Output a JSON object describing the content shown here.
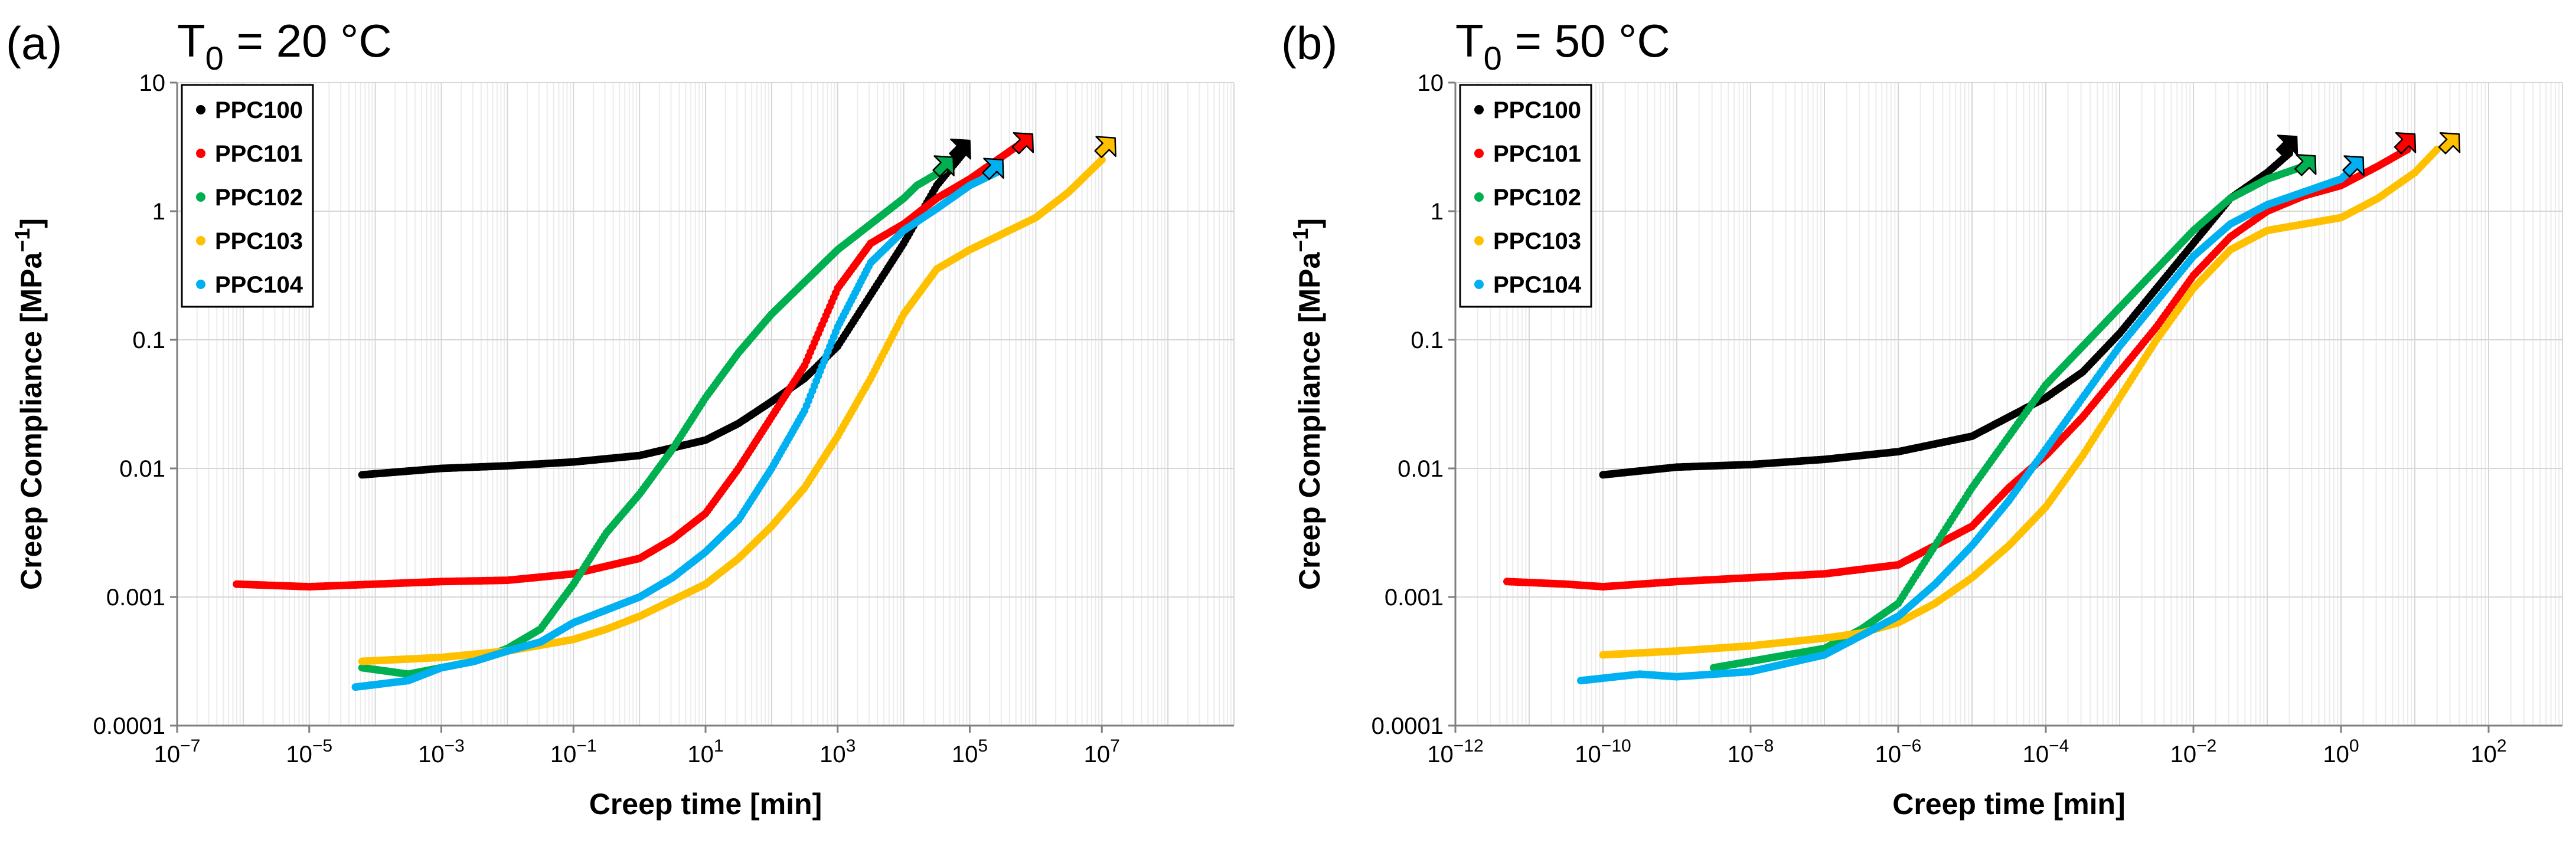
{
  "chart_data": [
    {
      "type": "scatter",
      "panel_label": "(a)",
      "title_main": "T",
      "title_sub": "0",
      "title_rest": " = 20 °C",
      "xscale": "log",
      "yscale": "log",
      "xlabel": "Creep time [min]",
      "ylabel_main": "Creep Compliance [MPa",
      "ylabel_sup": "−1",
      "ylabel_end": "]",
      "xlim_exp": [
        -7,
        9
      ],
      "ylim_exp": [
        -4,
        1
      ],
      "x_ticks": [
        {
          "exp": -7,
          "base": "10",
          "sup": "−7"
        },
        {
          "exp": -5,
          "base": "10",
          "sup": "−5"
        },
        {
          "exp": -3,
          "base": "10",
          "sup": "−3"
        },
        {
          "exp": -1,
          "base": "10",
          "sup": "−1"
        },
        {
          "exp": 1,
          "base": "10",
          "sup": "1"
        },
        {
          "exp": 3,
          "base": "10",
          "sup": "3"
        },
        {
          "exp": 5,
          "base": "10",
          "sup": "5"
        },
        {
          "exp": 7,
          "base": "10",
          "sup": "7"
        }
      ],
      "y_ticks": [
        {
          "exp": -4,
          "label": "0.0001"
        },
        {
          "exp": -3,
          "label": "0.001"
        },
        {
          "exp": -2,
          "label": "0.01"
        },
        {
          "exp": -1,
          "label": "0.1"
        },
        {
          "exp": 0,
          "label": "1"
        },
        {
          "exp": 1,
          "label": "10"
        }
      ],
      "legend_position": "top-left",
      "series": [
        {
          "name": "PPC100",
          "color": "#000000",
          "points_log10": [
            [
              -4.2,
              -2.05
            ],
            [
              -3,
              -2
            ],
            [
              -2,
              -1.98
            ],
            [
              -1,
              -1.95
            ],
            [
              0,
              -1.9
            ],
            [
              1,
              -1.78
            ],
            [
              1.5,
              -1.65
            ],
            [
              2,
              -1.48
            ],
            [
              2.5,
              -1.3
            ],
            [
              3,
              -1.05
            ],
            [
              3.5,
              -0.65
            ],
            [
              4,
              -0.25
            ],
            [
              4.5,
              0.2
            ],
            [
              4.9,
              0.45
            ]
          ],
          "arrow_tip_log10": [
            5.0,
            0.55
          ]
        },
        {
          "name": "PPC101",
          "color": "#ff0000",
          "points_log10": [
            [
              -6.1,
              -2.9
            ],
            [
              -5,
              -2.92
            ],
            [
              -4,
              -2.9
            ],
            [
              -3,
              -2.88
            ],
            [
              -2,
              -2.87
            ],
            [
              -1,
              -2.82
            ],
            [
              0,
              -2.7
            ],
            [
              0.5,
              -2.55
            ],
            [
              1,
              -2.35
            ],
            [
              1.5,
              -2
            ],
            [
              2,
              -1.6
            ],
            [
              2.5,
              -1.2
            ],
            [
              3,
              -0.6
            ],
            [
              3.5,
              -0.25
            ],
            [
              4,
              -0.1
            ],
            [
              4.5,
              0.1
            ],
            [
              5,
              0.25
            ],
            [
              5.7,
              0.5
            ]
          ],
          "arrow_tip_log10": [
            5.95,
            0.6
          ]
        },
        {
          "name": "PPC102",
          "color": "#00b050",
          "points_log10": [
            [
              -4.2,
              -3.55
            ],
            [
              -3.5,
              -3.6
            ],
            [
              -3,
              -3.55
            ],
            [
              -2.5,
              -3.5
            ],
            [
              -2,
              -3.4
            ],
            [
              -1.5,
              -3.25
            ],
            [
              -1,
              -2.9
            ],
            [
              -0.5,
              -2.5
            ],
            [
              0,
              -2.2
            ],
            [
              0.5,
              -1.85
            ],
            [
              1,
              -1.45
            ],
            [
              1.5,
              -1.1
            ],
            [
              2,
              -0.8
            ],
            [
              2.5,
              -0.55
            ],
            [
              3,
              -0.3
            ],
            [
              3.5,
              -0.1
            ],
            [
              3.8,
              0.02
            ],
            [
              4,
              0.1
            ],
            [
              4.2,
              0.2
            ],
            [
              4.6,
              0.32
            ]
          ],
          "arrow_tip_log10": [
            4.75,
            0.42
          ]
        },
        {
          "name": "PPC103",
          "color": "#ffc000",
          "points_log10": [
            [
              -4.2,
              -3.5
            ],
            [
              -3,
              -3.47
            ],
            [
              -2,
              -3.42
            ],
            [
              -1,
              -3.33
            ],
            [
              -0.5,
              -3.25
            ],
            [
              0,
              -3.15
            ],
            [
              1,
              -2.9
            ],
            [
              1.5,
              -2.7
            ],
            [
              2,
              -2.45
            ],
            [
              2.5,
              -2.15
            ],
            [
              3,
              -1.75
            ],
            [
              3.5,
              -1.3
            ],
            [
              4,
              -0.8
            ],
            [
              4.5,
              -0.45
            ],
            [
              5,
              -0.3
            ],
            [
              6,
              -0.05
            ],
            [
              6.5,
              0.15
            ],
            [
              7,
              0.4
            ]
          ],
          "arrow_tip_log10": [
            7.2,
            0.57
          ]
        },
        {
          "name": "PPC104",
          "color": "#00b0f0",
          "points_log10": [
            [
              -4.3,
              -3.7
            ],
            [
              -3.5,
              -3.65
            ],
            [
              -3,
              -3.55
            ],
            [
              -2.5,
              -3.5
            ],
            [
              -2,
              -3.42
            ],
            [
              -1.5,
              -3.35
            ],
            [
              -1,
              -3.2
            ],
            [
              0,
              -3
            ],
            [
              0.5,
              -2.85
            ],
            [
              1,
              -2.65
            ],
            [
              1.5,
              -2.4
            ],
            [
              2,
              -2
            ],
            [
              2.5,
              -1.55
            ],
            [
              3,
              -0.9
            ],
            [
              3.5,
              -0.4
            ],
            [
              4,
              -0.15
            ],
            [
              4.5,
              0.02
            ],
            [
              5,
              0.2
            ],
            [
              5.4,
              0.3
            ]
          ],
          "arrow_tip_log10": [
            5.5,
            0.4
          ]
        }
      ]
    },
    {
      "type": "scatter",
      "panel_label": "(b)",
      "title_main": "T",
      "title_sub": "0",
      "title_rest": " = 50 °C",
      "xscale": "log",
      "yscale": "log",
      "xlabel": "Creep time [min]",
      "ylabel_main": "Creep Compliance [MPa",
      "ylabel_sup": "−1",
      "ylabel_end": "]",
      "xlim_exp": [
        -12,
        3
      ],
      "ylim_exp": [
        -4,
        1
      ],
      "x_ticks": [
        {
          "exp": -12,
          "base": "10",
          "sup": "−12"
        },
        {
          "exp": -10,
          "base": "10",
          "sup": "−10"
        },
        {
          "exp": -8,
          "base": "10",
          "sup": "−8"
        },
        {
          "exp": -6,
          "base": "10",
          "sup": "−6"
        },
        {
          "exp": -4,
          "base": "10",
          "sup": "−4"
        },
        {
          "exp": -2,
          "base": "10",
          "sup": "−2"
        },
        {
          "exp": 0,
          "base": "10",
          "sup": "0"
        },
        {
          "exp": 2,
          "base": "10",
          "sup": "2"
        }
      ],
      "y_ticks": [
        {
          "exp": -4,
          "label": "0.0001"
        },
        {
          "exp": -3,
          "label": "0.001"
        },
        {
          "exp": -2,
          "label": "0.01"
        },
        {
          "exp": -1,
          "label": "0.1"
        },
        {
          "exp": 0,
          "label": "1"
        },
        {
          "exp": 1,
          "label": "10"
        }
      ],
      "legend_position": "top-left",
      "series": [
        {
          "name": "PPC100",
          "color": "#000000",
          "points_log10": [
            [
              -10,
              -2.05
            ],
            [
              -9.5,
              -2.02
            ],
            [
              -9,
              -1.99
            ],
            [
              -8,
              -1.97
            ],
            [
              -7,
              -1.93
            ],
            [
              -6,
              -1.87
            ],
            [
              -5,
              -1.75
            ],
            [
              -4.5,
              -1.6
            ],
            [
              -4,
              -1.45
            ],
            [
              -3.5,
              -1.25
            ],
            [
              -3,
              -0.95
            ],
            [
              -2.5,
              -0.6
            ],
            [
              -2,
              -0.25
            ],
            [
              -1.5,
              0.1
            ],
            [
              -1,
              0.3
            ],
            [
              -0.7,
              0.45
            ]
          ],
          "arrow_tip_log10": [
            -0.6,
            0.58
          ]
        },
        {
          "name": "PPC101",
          "color": "#ff0000",
          "points_log10": [
            [
              -11.3,
              -2.88
            ],
            [
              -10.5,
              -2.9
            ],
            [
              -10,
              -2.92
            ],
            [
              -9,
              -2.88
            ],
            [
              -8,
              -2.85
            ],
            [
              -7,
              -2.82
            ],
            [
              -6,
              -2.75
            ],
            [
              -5.5,
              -2.6
            ],
            [
              -5,
              -2.45
            ],
            [
              -4.5,
              -2.15
            ],
            [
              -4,
              -1.9
            ],
            [
              -3.5,
              -1.6
            ],
            [
              -3,
              -1.25
            ],
            [
              -2.5,
              -0.9
            ],
            [
              -2,
              -0.5
            ],
            [
              -1.5,
              -0.2
            ],
            [
              -1,
              0
            ],
            [
              -0.5,
              0.12
            ],
            [
              0,
              0.2
            ],
            [
              0.5,
              0.35
            ],
            [
              0.9,
              0.48
            ]
          ],
          "arrow_tip_log10": [
            1.0,
            0.6
          ]
        },
        {
          "name": "PPC102",
          "color": "#00b050",
          "points_log10": [
            [
              -8.5,
              -3.55
            ],
            [
              -8,
              -3.5
            ],
            [
              -7,
              -3.4
            ],
            [
              -6.5,
              -3.25
            ],
            [
              -6,
              -3.05
            ],
            [
              -5.5,
              -2.6
            ],
            [
              -5,
              -2.15
            ],
            [
              -4.5,
              -1.75
            ],
            [
              -4,
              -1.35
            ],
            [
              -3.5,
              -1.05
            ],
            [
              -3,
              -0.75
            ],
            [
              -2.5,
              -0.45
            ],
            [
              -2,
              -0.15
            ],
            [
              -1.5,
              0.1
            ],
            [
              -1,
              0.25
            ],
            [
              -0.5,
              0.35
            ]
          ],
          "arrow_tip_log10": [
            -0.35,
            0.43
          ]
        },
        {
          "name": "PPC103",
          "color": "#ffc000",
          "points_log10": [
            [
              -10,
              -3.45
            ],
            [
              -9,
              -3.42
            ],
            [
              -8,
              -3.38
            ],
            [
              -7,
              -3.32
            ],
            [
              -6.5,
              -3.28
            ],
            [
              -6,
              -3.2
            ],
            [
              -5.5,
              -3.05
            ],
            [
              -5,
              -2.85
            ],
            [
              -4.5,
              -2.6
            ],
            [
              -4,
              -2.3
            ],
            [
              -3.5,
              -1.9
            ],
            [
              -3,
              -1.45
            ],
            [
              -2.5,
              -1
            ],
            [
              -2,
              -0.6
            ],
            [
              -1.5,
              -0.3
            ],
            [
              -1,
              -0.15
            ],
            [
              0,
              -0.05
            ],
            [
              0.5,
              0.1
            ],
            [
              1,
              0.3
            ],
            [
              1.3,
              0.48
            ]
          ],
          "arrow_tip_log10": [
            1.6,
            0.6
          ]
        },
        {
          "name": "PPC104",
          "color": "#00b0f0",
          "points_log10": [
            [
              -10.3,
              -3.65
            ],
            [
              -9.5,
              -3.6
            ],
            [
              -9,
              -3.62
            ],
            [
              -8,
              -3.58
            ],
            [
              -7,
              -3.45
            ],
            [
              -6.5,
              -3.3
            ],
            [
              -6,
              -3.15
            ],
            [
              -5.5,
              -2.9
            ],
            [
              -5,
              -2.6
            ],
            [
              -4.5,
              -2.25
            ],
            [
              -4,
              -1.85
            ],
            [
              -3.5,
              -1.45
            ],
            [
              -3,
              -1.05
            ],
            [
              -2.5,
              -0.7
            ],
            [
              -2,
              -0.35
            ],
            [
              -1.5,
              -0.1
            ],
            [
              -1,
              0.05
            ],
            [
              -0.5,
              0.15
            ],
            [
              0,
              0.25
            ],
            [
              0.2,
              0.35
            ]
          ],
          "arrow_tip_log10": [
            0.3,
            0.42
          ]
        }
      ]
    }
  ]
}
